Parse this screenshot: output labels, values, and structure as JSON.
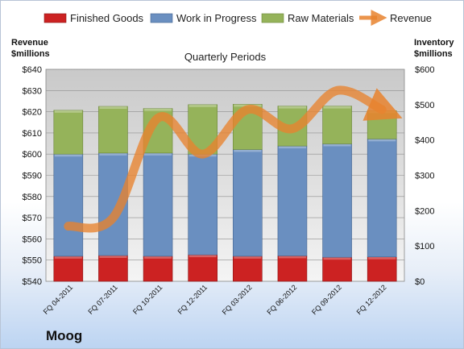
{
  "chart_data": {
    "type": "bar",
    "title": "Quarterly Periods",
    "company": "Moog",
    "categories": [
      "FQ 04-2011",
      "FQ 07-2011",
      "FQ 10-2011",
      "FQ 12-2011",
      "FQ 03-2012",
      "FQ 06-2012",
      "FQ 09-2012",
      "FQ 12-2012"
    ],
    "stacked_series": [
      {
        "name": "Finished Goods",
        "color": "#cc2222",
        "values": [
          71,
          73,
          71,
          75,
          71,
          72,
          68,
          69
        ]
      },
      {
        "name": "Work in Progress",
        "color": "#6a8fc0",
        "values": [
          289,
          290,
          292,
          285,
          302,
          311,
          321,
          334
        ]
      },
      {
        "name": "Raw Materials",
        "color": "#95b35a",
        "values": [
          124,
          132,
          126,
          140,
          128,
          113,
          107,
          80
        ]
      }
    ],
    "line_series": {
      "name": "Revenue",
      "color": "#e8832e",
      "values": [
        566,
        570,
        617,
        600,
        621,
        612,
        630,
        621
      ]
    },
    "left_axis": {
      "label_line1": "Revenue",
      "label_line2": "$millions",
      "min": 540,
      "max": 640,
      "ticks": [
        "$540",
        "$550",
        "$560",
        "$570",
        "$580",
        "$590",
        "$600",
        "$610",
        "$620",
        "$630",
        "$640"
      ]
    },
    "right_axis": {
      "label_line1": "Inventory",
      "label_line2": "$millions",
      "min": 0,
      "max": 600,
      "ticks": [
        "$0",
        "$100",
        "$200",
        "$300",
        "$400",
        "$500",
        "$600"
      ]
    },
    "legend_placement": "top",
    "grid": true
  }
}
